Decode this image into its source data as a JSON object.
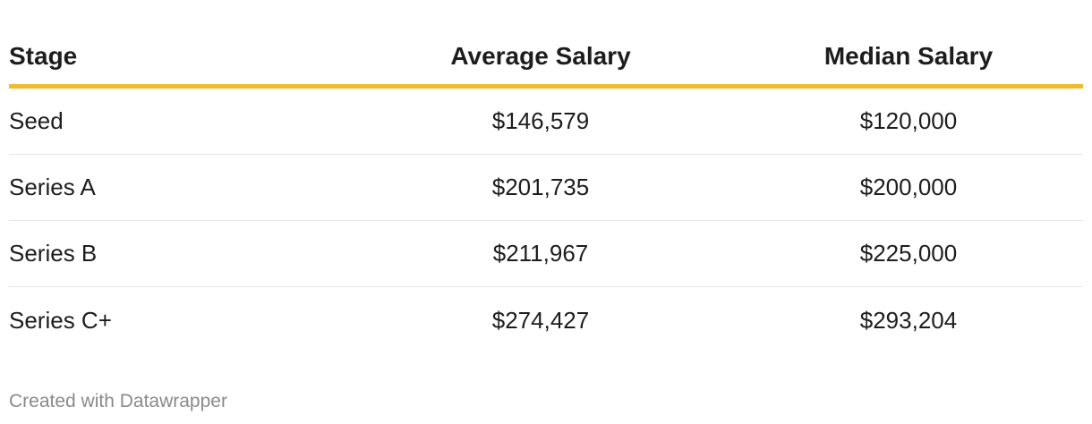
{
  "chart_data": {
    "type": "table",
    "columns": [
      "Stage",
      "Average Salary",
      "Median Salary"
    ],
    "rows": [
      [
        "Seed",
        "$146,579",
        "$120,000"
      ],
      [
        "Series A",
        "$201,735",
        "$200,000"
      ],
      [
        "Series B",
        "$211,967",
        "$225,000"
      ],
      [
        "Series C+",
        "$274,427",
        "$293,204"
      ]
    ],
    "header_rule_color": "#f0bb2f"
  },
  "footer": {
    "credit": "Created with Datawrapper"
  }
}
